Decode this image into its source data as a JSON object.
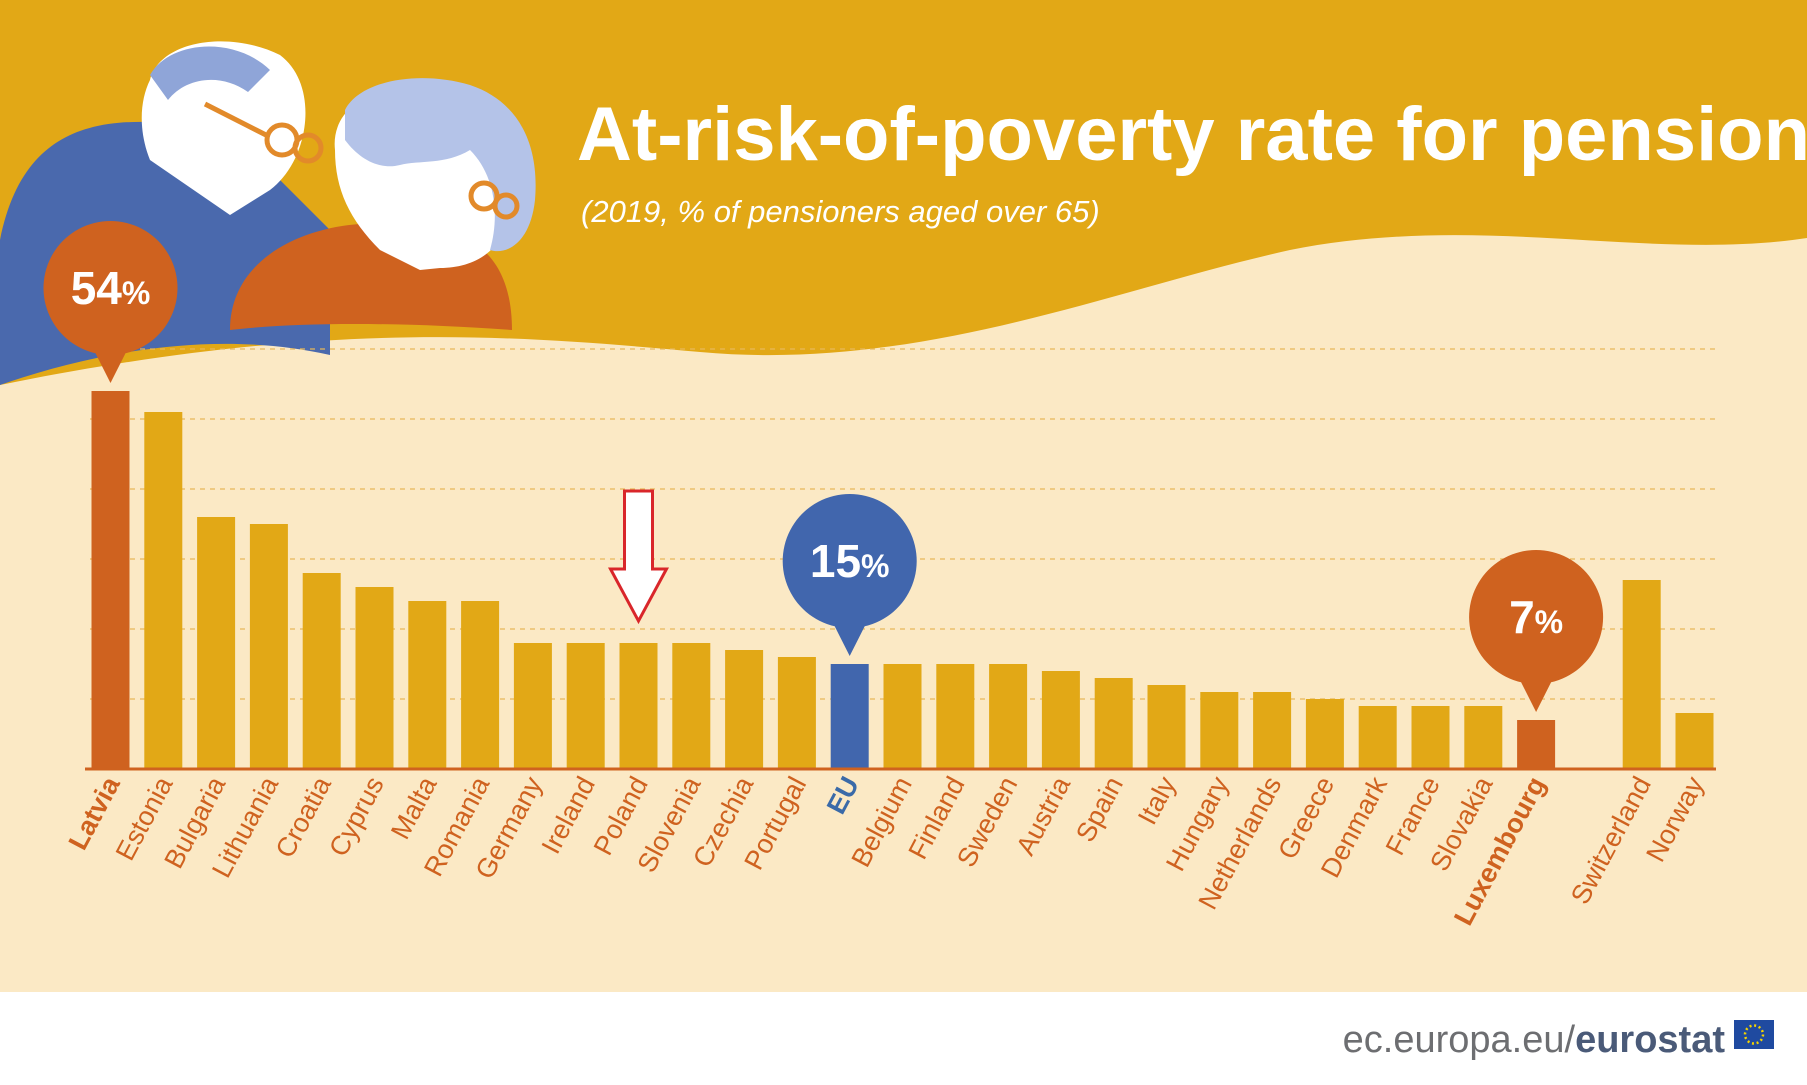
{
  "colors": {
    "top_band": "#e2a816",
    "chart_bg": "#fbe9c5",
    "bar": "#e2a816",
    "highlight": "#cf621f",
    "eu": "#4166ad",
    "label": "#cf621f",
    "eu_label": "#3a6aa8",
    "grid": "#e8b85a",
    "arrow": "#d9262a",
    "footer_text": "#6d6e71",
    "footer_brand": "#4a5a78"
  },
  "footer": {
    "prefix": "ec.europa.eu/",
    "brand": "eurostat"
  },
  "callouts": {
    "max": {
      "value": "54",
      "unit": "%"
    },
    "eu": {
      "value": "15",
      "unit": "%"
    },
    "min": {
      "value": "7",
      "unit": "%"
    }
  },
  "chart_data": {
    "type": "bar",
    "title": "At-risk-of-poverty rate for pensioners",
    "subtitle": "(2019, % of pensioners aged over 65)",
    "xlabel": "",
    "ylabel": "",
    "ylim": [
      0,
      60
    ],
    "grid": true,
    "highlighted": "Poland",
    "categories": [
      "Latvia",
      "Estonia",
      "Bulgaria",
      "Lithuania",
      "Croatia",
      "Cyprus",
      "Malta",
      "Romania",
      "Germany",
      "Ireland",
      "Poland",
      "Slovenia",
      "Czechia",
      "Portugal",
      "EU",
      "Belgium",
      "Finland",
      "Sweden",
      "Austria",
      "Spain",
      "Italy",
      "Hungary",
      "Netherlands",
      "Greece",
      "Denmark",
      "France",
      "Slovakia",
      "Luxembourg",
      "Switzerland",
      "Norway"
    ],
    "values": [
      54,
      51,
      36,
      35,
      28,
      26,
      24,
      24,
      18,
      18,
      18,
      18,
      17,
      16,
      15,
      15,
      15,
      15,
      14,
      13,
      12,
      11,
      11,
      10,
      9,
      9,
      9,
      7,
      27,
      8
    ],
    "bar_colors": {
      "Latvia": "highlight",
      "EU": "eu",
      "Luxembourg": "highlight"
    },
    "bold_labels": [
      "Latvia",
      "EU",
      "Luxembourg"
    ]
  }
}
